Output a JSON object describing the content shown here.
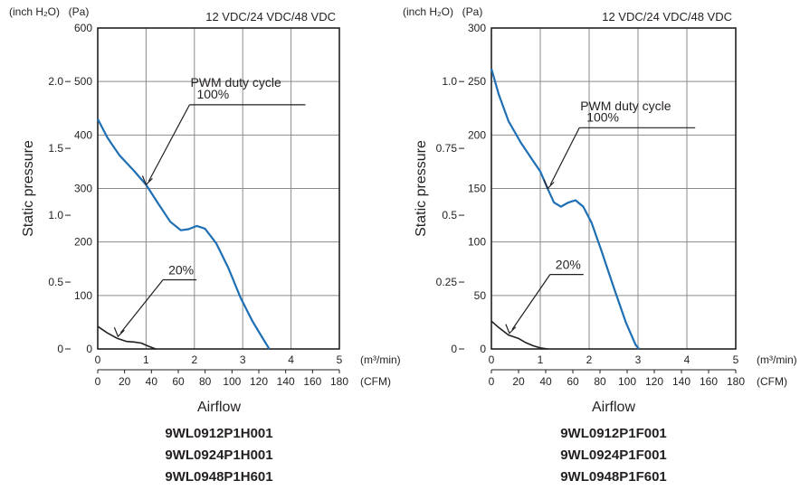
{
  "chart_data": [
    {
      "type": "line",
      "title": "",
      "voltage_label": "12 VDC/24 VDC/48 VDC",
      "xlabel": "Airflow",
      "ylabel": "Static pressure",
      "x_unit": "(m³/min)",
      "x2_unit": "(CFM)",
      "y_unit": "(Pa)",
      "y2_unit": "(inch H₂O)",
      "xlim": [
        0,
        5
      ],
      "ylim": [
        0,
        600
      ],
      "x2_max": 180,
      "y2_max": 2.4,
      "x_ticks": [
        0,
        1,
        2,
        3,
        4,
        5
      ],
      "x_tick_labels": [
        "0",
        "1",
        "2",
        "3",
        "4",
        "5"
      ],
      "x2_ticks": [
        0,
        20,
        40,
        60,
        80,
        100,
        120,
        140,
        160,
        180
      ],
      "x2_tick_labels": [
        "0",
        "20",
        "40",
        "60",
        "80",
        "100",
        "120",
        "140",
        "160",
        "180"
      ],
      "y_ticks": [
        0,
        100,
        200,
        300,
        400,
        500,
        600
      ],
      "y_tick_labels": [
        "0",
        "100",
        "200",
        "300",
        "400",
        "500",
        "600"
      ],
      "y2_ticks": [
        0,
        0.5,
        1.0,
        1.5,
        2.0
      ],
      "y2_tick_labels": [
        "0",
        "0.5",
        "1.0",
        "1.5",
        "2.0"
      ],
      "grid": true,
      "series": [
        {
          "name": "PWM duty cycle 100%",
          "color": "#1f6fb5",
          "x": [
            0,
            0.2,
            0.45,
            0.75,
            1.0,
            1.25,
            1.5,
            1.72,
            1.88,
            2.05,
            2.22,
            2.45,
            2.7,
            2.95,
            3.2,
            3.4,
            3.55
          ],
          "y": [
            430,
            395,
            362,
            333,
            307,
            272,
            238,
            222,
            224,
            230,
            225,
            198,
            152,
            97,
            52,
            22,
            0
          ]
        },
        {
          "name": "20%",
          "color": "#231f20",
          "x": [
            0,
            0.2,
            0.4,
            0.6,
            0.75,
            0.9,
            1.05,
            1.2
          ],
          "y": [
            42,
            30,
            20,
            14,
            13,
            11,
            5,
            0
          ]
        }
      ],
      "annotations": [
        {
          "text": "PWM duty cycle",
          "x": 1.9,
          "y": 490
        },
        {
          "text": "100%",
          "x": 1.9,
          "y": 465
        },
        {
          "text": "20%",
          "x": 1.35,
          "y": 136
        }
      ],
      "model_numbers": [
        "9WL0912P1H001",
        "9WL0924P1H001",
        "9WL0948P1H601"
      ]
    },
    {
      "type": "line",
      "title": "",
      "voltage_label": "12 VDC/24 VDC/48 VDC",
      "xlabel": "Airflow",
      "ylabel": "Static pressure",
      "x_unit": "(m³/min)",
      "x2_unit": "(CFM)",
      "y_unit": "(Pa)",
      "y2_unit": "(inch H₂O)",
      "xlim": [
        0,
        5
      ],
      "ylim": [
        0,
        300
      ],
      "x2_max": 180,
      "y2_max": 1.2,
      "x_ticks": [
        0,
        1,
        2,
        3,
        4,
        5
      ],
      "x_tick_labels": [
        "0",
        "1",
        "2",
        "3",
        "4",
        "5"
      ],
      "x2_ticks": [
        0,
        20,
        40,
        60,
        80,
        100,
        120,
        140,
        160,
        180
      ],
      "x2_tick_labels": [
        "0",
        "20",
        "40",
        "60",
        "80",
        "100",
        "120",
        "140",
        "160",
        "180"
      ],
      "y_ticks": [
        0,
        50,
        100,
        150,
        200,
        250,
        300
      ],
      "y_tick_labels": [
        "0",
        "50",
        "100",
        "150",
        "200",
        "250",
        "300"
      ],
      "y2_ticks": [
        0,
        0.25,
        0.5,
        0.75,
        1.0
      ],
      "y2_tick_labels": [
        "0",
        "0.25",
        "0.5",
        "0.75",
        "1.0"
      ],
      "grid": true,
      "series": [
        {
          "name": "PWM duty cycle 100%",
          "color": "#1f6fb5",
          "x": [
            0,
            0.15,
            0.35,
            0.6,
            0.85,
            1.0,
            1.15,
            1.28,
            1.42,
            1.58,
            1.72,
            1.88,
            2.05,
            2.25,
            2.5,
            2.75,
            2.95,
            3.02
          ],
          "y": [
            262,
            238,
            213,
            193,
            176,
            166,
            150,
            137,
            133,
            137,
            139,
            133,
            118,
            92,
            58,
            25,
            4,
            0
          ]
        },
        {
          "name": "20%",
          "color": "#231f20",
          "x": [
            0,
            0.15,
            0.35,
            0.55,
            0.7,
            0.85,
            1.0,
            1.15
          ],
          "y": [
            26,
            20,
            13,
            10,
            6,
            3,
            1,
            0
          ]
        }
      ],
      "annotations": [
        {
          "text": "PWM duty cycle",
          "x": 1.8,
          "y": 223
        },
        {
          "text": "100%",
          "x": 1.8,
          "y": 211
        },
        {
          "text": "20%",
          "x": 1.2,
          "y": 73
        }
      ],
      "model_numbers": [
        "9WL0912P1F001",
        "9WL0924P1F001",
        "9WL0948P1F601"
      ]
    }
  ]
}
